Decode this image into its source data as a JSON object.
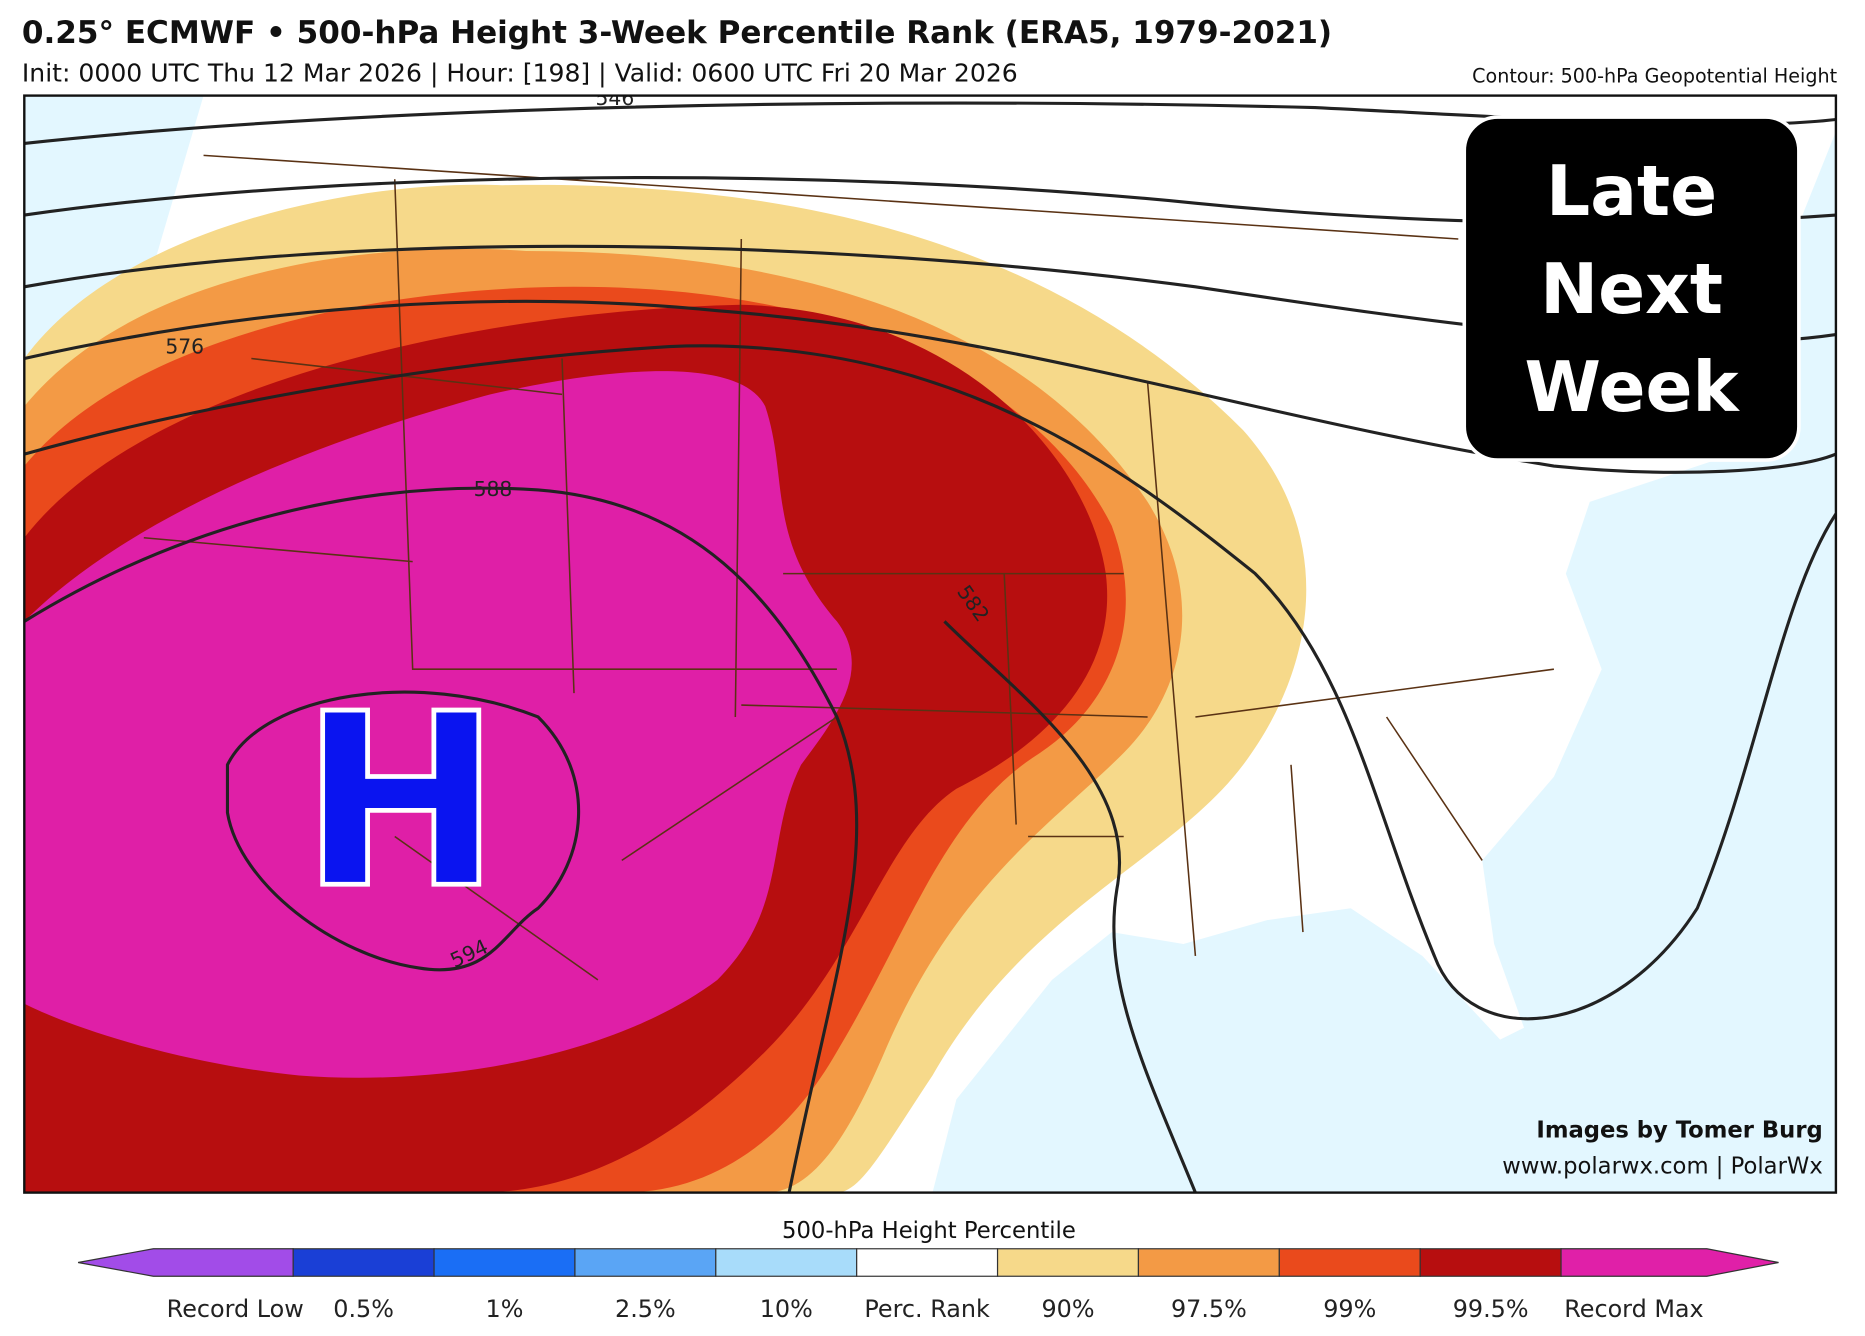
{
  "header": {
    "title": "0.25° ECMWF • 500-hPa Height 3-Week Percentile Rank (ERA5, 1979-2021)",
    "subtitle": "Init: 0000 UTC Thu 12 Mar 2026 | Hour: [198] | Valid: 0600 UTC Fri 20 Mar 2026",
    "contour_note": "Contour: 500-hPa Geopotential Height"
  },
  "map": {
    "contour_labels": [
      "546",
      "576",
      "588",
      "582",
      "594"
    ],
    "high_label": "H",
    "badge": [
      "Late",
      "Next",
      "Week"
    ],
    "credits": [
      "Images by Tomer Burg",
      "www.polarwx.com | PolarWx"
    ]
  },
  "colorbar": {
    "title": "500-hPa Height Percentile",
    "labels": [
      "Record Low",
      "0.5%",
      "1%",
      "2.5%",
      "10%",
      "Perc. Rank",
      "90%",
      "97.5%",
      "99%",
      "99.5%",
      "Record Max"
    ],
    "colors": [
      "#a24ce8",
      "#1a3fd6",
      "#1a6ef5",
      "#5aa5f5",
      "#a8dcfa",
      "#ffffff",
      "#f6d98a",
      "#f39a45",
      "#ea4a1c",
      "#b70e0f",
      "#e020a8"
    ]
  }
}
